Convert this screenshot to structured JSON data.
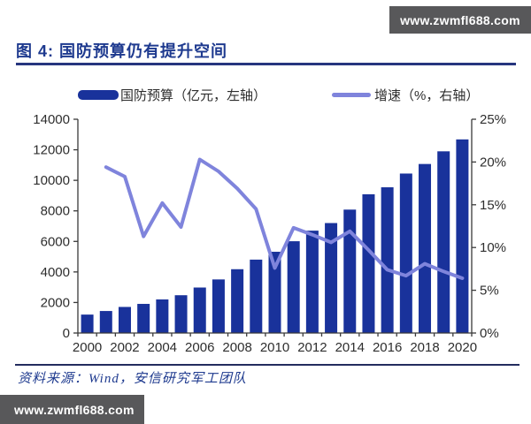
{
  "header": {
    "watermark": "www.zwmfl688.com"
  },
  "title": {
    "label": "图 4: 国防预算仍有提升空间"
  },
  "legend": {
    "items": [
      {
        "label": "国防预算（亿元，左轴）",
        "type": "bar",
        "color": "#19329b"
      },
      {
        "label": "增速（%，右轴）",
        "type": "line",
        "color": "#7f84dc"
      }
    ]
  },
  "footer": {
    "source": "资料来源：Wind，安信研究军工团队",
    "watermark": "www.zwmfl688.com"
  },
  "chart_data": {
    "type": "bar+line",
    "title": "国防预算仍有提升空间",
    "categories": [
      "2000",
      "2001",
      "2002",
      "2003",
      "2004",
      "2005",
      "2006",
      "2007",
      "2008",
      "2009",
      "2010",
      "2011",
      "2012",
      "2013",
      "2014",
      "2015",
      "2016",
      "2017",
      "2018",
      "2019",
      "2020"
    ],
    "series": [
      {
        "name": "国防预算（亿元，左轴）",
        "type": "bar",
        "axis": "left",
        "color": "#19329b",
        "values": [
          1207,
          1442,
          1708,
          1908,
          2200,
          2475,
          2979,
          3509,
          4179,
          4807,
          5321,
          6011,
          6703,
          7202,
          8082,
          9088,
          9544,
          10444,
          11070,
          11899,
          12680
        ]
      },
      {
        "name": "增速（%，右轴）",
        "type": "line",
        "axis": "right",
        "color": "#7f84dc",
        "values": [
          null,
          19.4,
          18.3,
          11.3,
          15.2,
          12.4,
          20.3,
          18.9,
          16.9,
          14.5,
          7.6,
          12.3,
          11.5,
          10.6,
          11.9,
          9.7,
          7.4,
          6.7,
          8.1,
          7.2,
          6.4
        ]
      }
    ],
    "left_axis": {
      "min": 0,
      "max": 14000,
      "step": 2000,
      "ticks": [
        "0",
        "2000",
        "4000",
        "6000",
        "8000",
        "10000",
        "12000",
        "14000"
      ]
    },
    "right_axis": {
      "min": 0,
      "max": 25,
      "step": 5,
      "ticks": [
        "0%",
        "5%",
        "10%",
        "15%",
        "20%",
        "25%"
      ]
    },
    "x_label_every": 2,
    "grid": false,
    "legend_position": "top",
    "axis_color": "#3a3a3a",
    "tick_label_color": "#2e2e2e"
  }
}
